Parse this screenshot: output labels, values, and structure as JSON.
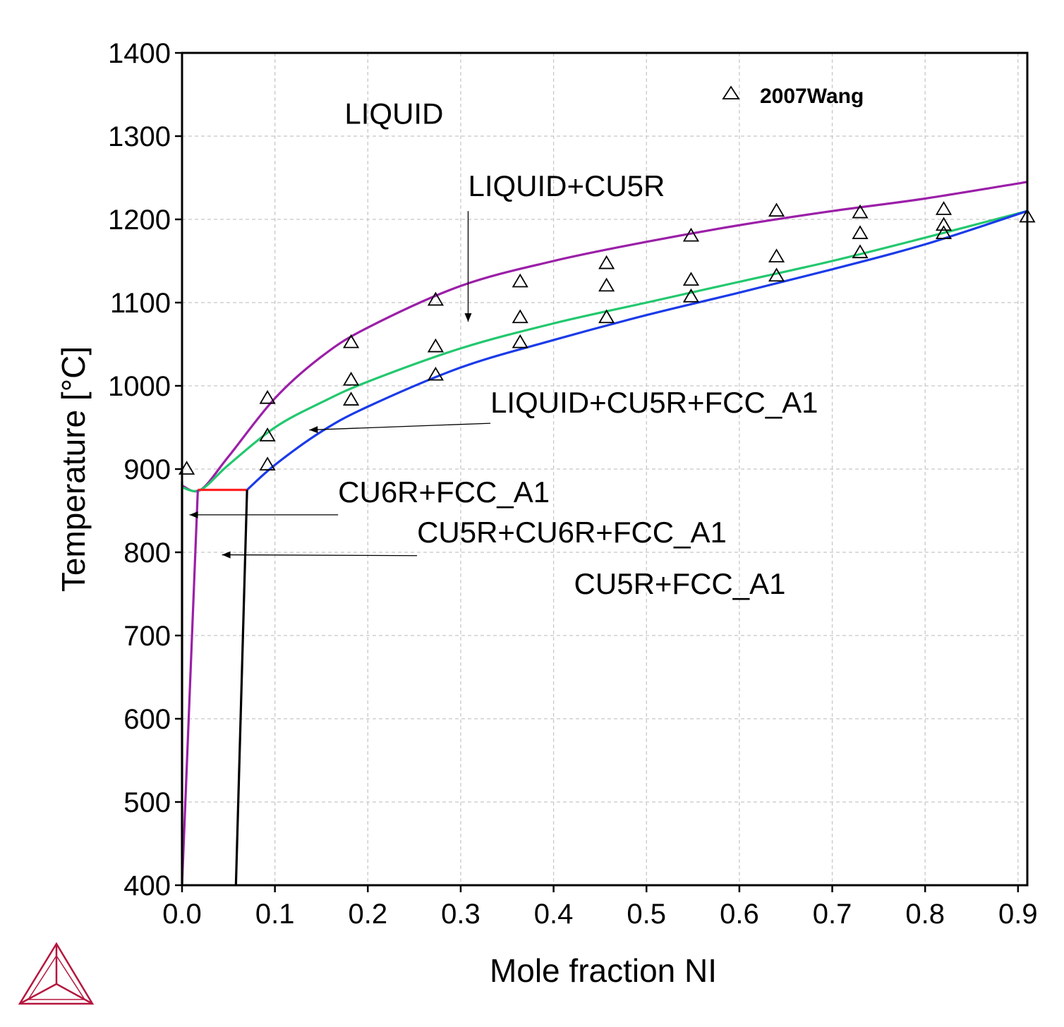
{
  "chart_data": {
    "type": "line",
    "title": "",
    "xlabel": "Mole fraction NI",
    "ylabel": "Temperature [°C]",
    "xlim": [
      0.0,
      0.91
    ],
    "ylim": [
      400,
      1400
    ],
    "xticks": [
      "0.0",
      "0.1",
      "0.2",
      "0.3",
      "0.4",
      "0.5",
      "0.6",
      "0.7",
      "0.8",
      "0.9"
    ],
    "yticks": [
      "400",
      "500",
      "600",
      "700",
      "800",
      "900",
      "1000",
      "1100",
      "1200",
      "1300",
      "1400"
    ],
    "grid": true,
    "legend": {
      "position": "top-right",
      "entries": [
        "2007Wang"
      ]
    },
    "colors": {
      "liquidus": "#9b1fa8",
      "green_boundary": "#22c86e",
      "blue_boundary": "#1a3be8",
      "eutectic": "#ff2020",
      "solvus": "#000000",
      "logo": "#b5163e"
    },
    "series": [
      {
        "x": [
          0.0,
          0.02,
          0.05,
          0.1,
          0.15,
          0.2,
          0.3,
          0.4,
          0.5,
          0.6,
          0.7,
          0.8,
          0.91
        ],
        "y": [
          880,
          875,
          915,
          985,
          1035,
          1070,
          1120,
          1150,
          1173,
          1193,
          1210,
          1225,
          1245
        ]
      },
      {
        "x": [
          0.0,
          0.02,
          0.05,
          0.1,
          0.15,
          0.2,
          0.3,
          0.4,
          0.5,
          0.6,
          0.7,
          0.8,
          0.91
        ],
        "y": [
          878,
          875,
          905,
          950,
          980,
          1005,
          1045,
          1075,
          1100,
          1125,
          1150,
          1178,
          1210
        ]
      },
      {
        "x": [
          0.07,
          0.1,
          0.15,
          0.2,
          0.3,
          0.4,
          0.5,
          0.6,
          0.7,
          0.8,
          0.91
        ],
        "y": [
          875,
          905,
          945,
          975,
          1022,
          1055,
          1085,
          1112,
          1140,
          1170,
          1210
        ]
      },
      {
        "x": [
          0.017,
          0.07
        ],
        "y": [
          875,
          875
        ]
      },
      {
        "x": [
          0.0,
          0.017
        ],
        "y": [
          400,
          875
        ]
      },
      {
        "x": [
          0.058,
          0.07
        ],
        "y": [
          400,
          875
        ]
      },
      {
        "x": [
          0.0,
          0.0
        ],
        "y": [
          400,
          885
        ]
      }
    ],
    "points": {
      "name": "2007Wang",
      "x": [
        0.005,
        0.092,
        0.092,
        0.092,
        0.182,
        0.182,
        0.182,
        0.273,
        0.273,
        0.273,
        0.364,
        0.364,
        0.364,
        0.457,
        0.457,
        0.457,
        0.548,
        0.548,
        0.548,
        0.64,
        0.64,
        0.64,
        0.73,
        0.73,
        0.73,
        0.82,
        0.82,
        0.82,
        0.91
      ],
      "y": [
        900,
        985,
        940,
        905,
        1052,
        1007,
        983,
        1103,
        1047,
        1013,
        1125,
        1082,
        1052,
        1147,
        1120,
        1082,
        1180,
        1127,
        1107,
        1210,
        1155,
        1132,
        1208,
        1183,
        1160,
        1212,
        1193,
        1183,
        1203
      ]
    },
    "annotations": [
      {
        "text": "LIQUID",
        "x": 0.175,
        "y": 1315,
        "arrow": null
      },
      {
        "text": "LIQUID+CU5R",
        "x": 0.308,
        "y": 1228,
        "arrow": [
          0.308,
          1210,
          0.308,
          1077
        ]
      },
      {
        "text": "LIQUID+CU5R+FCC_A1",
        "x": 0.332,
        "y": 968,
        "arrow": [
          0.332,
          955,
          0.137,
          947
        ]
      },
      {
        "text": "CU6R+FCC_A1",
        "x": 0.168,
        "y": 860,
        "arrow": [
          0.168,
          845,
          0.008,
          845
        ]
      },
      {
        "text": "CU5R+CU6R+FCC_A1",
        "x": 0.253,
        "y": 812,
        "arrow": [
          0.253,
          796,
          0.043,
          797
        ]
      },
      {
        "text": "CU5R+FCC_A1",
        "x": 0.422,
        "y": 750,
        "arrow": null
      }
    ]
  }
}
